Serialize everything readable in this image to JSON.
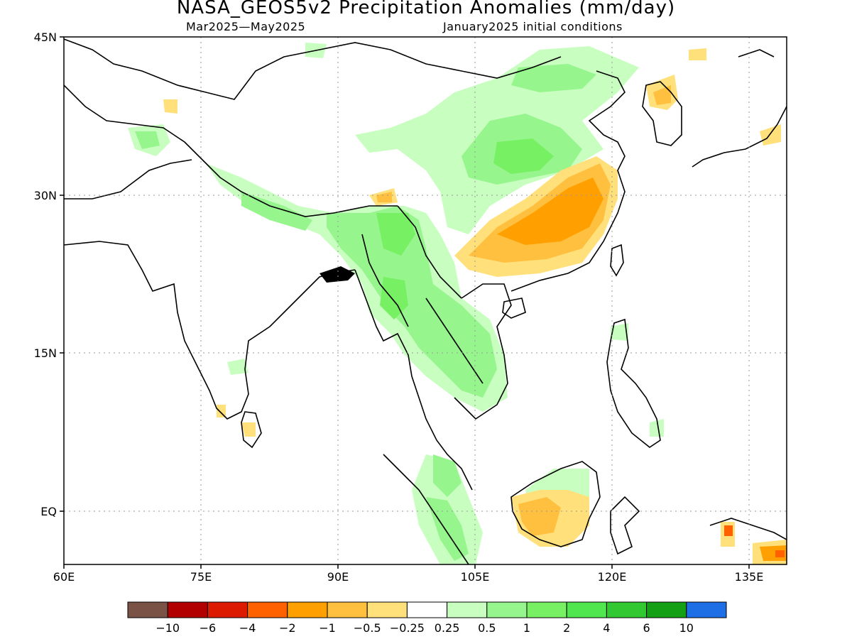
{
  "header": {
    "title": "NASA_GEOS5v2 Precipitation Anomalies (mm/day)",
    "period": "Mar2025—May2025",
    "initial_conditions": "January2025 initial conditions"
  },
  "axes": {
    "lat_labels": [
      "45N",
      "30N",
      "15N",
      "EQ"
    ],
    "lon_labels": [
      "60E",
      "75E",
      "90E",
      "105E",
      "120E",
      "135E"
    ],
    "lat_range": [
      -6,
      45
    ],
    "lon_range": [
      60,
      139
    ],
    "grid": "dotted"
  },
  "colorbar": {
    "colors": [
      "#7a5246",
      "#b20000",
      "#dc1a00",
      "#ff6000",
      "#ffa000",
      "#ffc040",
      "#ffe07a",
      "#ffffff",
      "#c8ffc0",
      "#96f58c",
      "#78f064",
      "#50e650",
      "#32c832",
      "#14a014",
      "#1e6ee6"
    ],
    "labels": [
      "−10",
      "−6",
      "−4",
      "−2",
      "−1",
      "−0.5",
      "−0.25",
      "0.25",
      "0.5",
      "1",
      "2",
      "4",
      "6",
      "10"
    ]
  }
}
